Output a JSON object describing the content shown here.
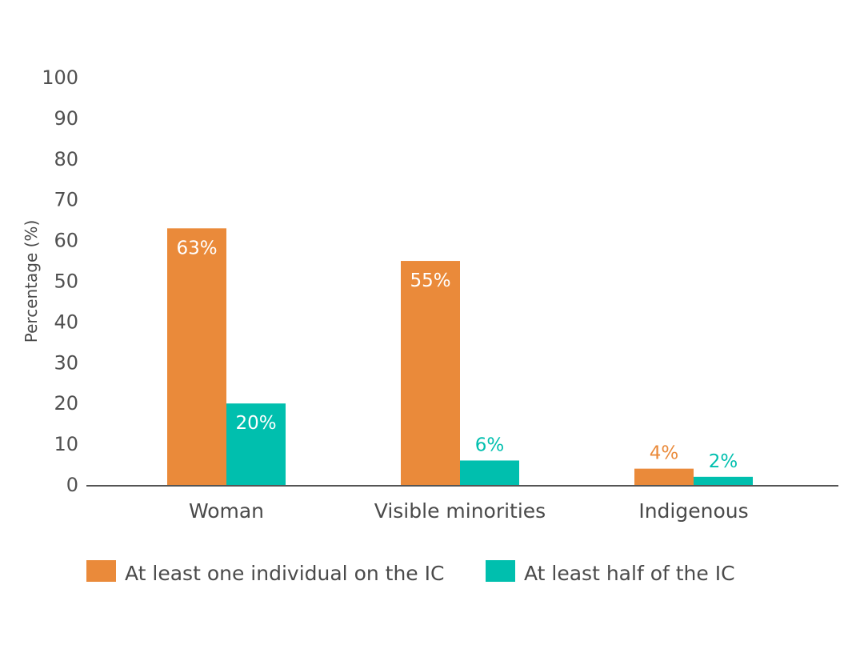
{
  "chart_data": {
    "type": "bar",
    "title": "",
    "xlabel": "",
    "ylabel": "Percentage (%)",
    "ylim": [
      0,
      100
    ],
    "yticks": [
      0,
      10,
      20,
      30,
      40,
      50,
      60,
      70,
      80,
      90,
      100
    ],
    "categories": [
      "Woman",
      "Visible minorities",
      "Indigenous"
    ],
    "series": [
      {
        "name": "At least one individual on the IC",
        "color": "#EA8A3A",
        "values": [
          63,
          55,
          4
        ],
        "labels": [
          "63%",
          "55%",
          "4%"
        ]
      },
      {
        "name": "At least half of the IC",
        "color": "#00BFAE",
        "values": [
          20,
          6,
          2
        ],
        "labels": [
          "20%",
          "6%",
          "2%"
        ]
      }
    ],
    "grid": false,
    "legend_position": "bottom"
  }
}
